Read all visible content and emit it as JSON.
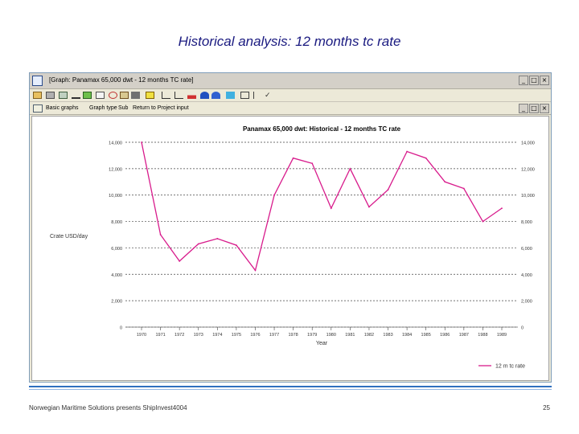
{
  "slide": {
    "title": "Historical analysis: 12 months tc rate",
    "footer_left": "Norwegian Maritime Solutions presents ShipInvest4004",
    "page_number": "25"
  },
  "window": {
    "title": "[Graph: Panamax 65,000 dwt - 12 months TC rate]",
    "menu": [
      "Basic graphs",
      "Graph type",
      "Sub",
      "Return to Project input"
    ]
  },
  "colors": {
    "series": "#d81b8c",
    "title_blue": "#1a1a80",
    "accent_line": "#2e6fbf"
  },
  "chart_data": {
    "type": "line",
    "title": "Panamax 65,000 dwt: Historical - 12 months TC rate",
    "xlabel": "Year",
    "ylabel": "Crate USD/day",
    "categories": [
      "1970",
      "1971",
      "1972",
      "1973",
      "1974",
      "1975",
      "1976",
      "1977",
      "1978",
      "1979",
      "1980",
      "1981",
      "1982",
      "1983",
      "1984",
      "1985",
      "1986",
      "1987",
      "1988",
      "1989"
    ],
    "series": [
      {
        "name": "12 m tc rate",
        "values": [
          14000,
          7000,
          5000,
          6300,
          6700,
          6200,
          4300,
          10000,
          12800,
          12400,
          9000,
          12000,
          9100,
          10400,
          13300,
          12800,
          11000,
          10500,
          8000,
          9000
        ]
      }
    ],
    "ylim": [
      0,
      14000
    ],
    "yticks": [
      "0",
      "2,000",
      "4,000",
      "6,000",
      "8,000",
      "10,000",
      "12,000",
      "14,000"
    ],
    "grid": true,
    "legend": "bottom-right"
  }
}
